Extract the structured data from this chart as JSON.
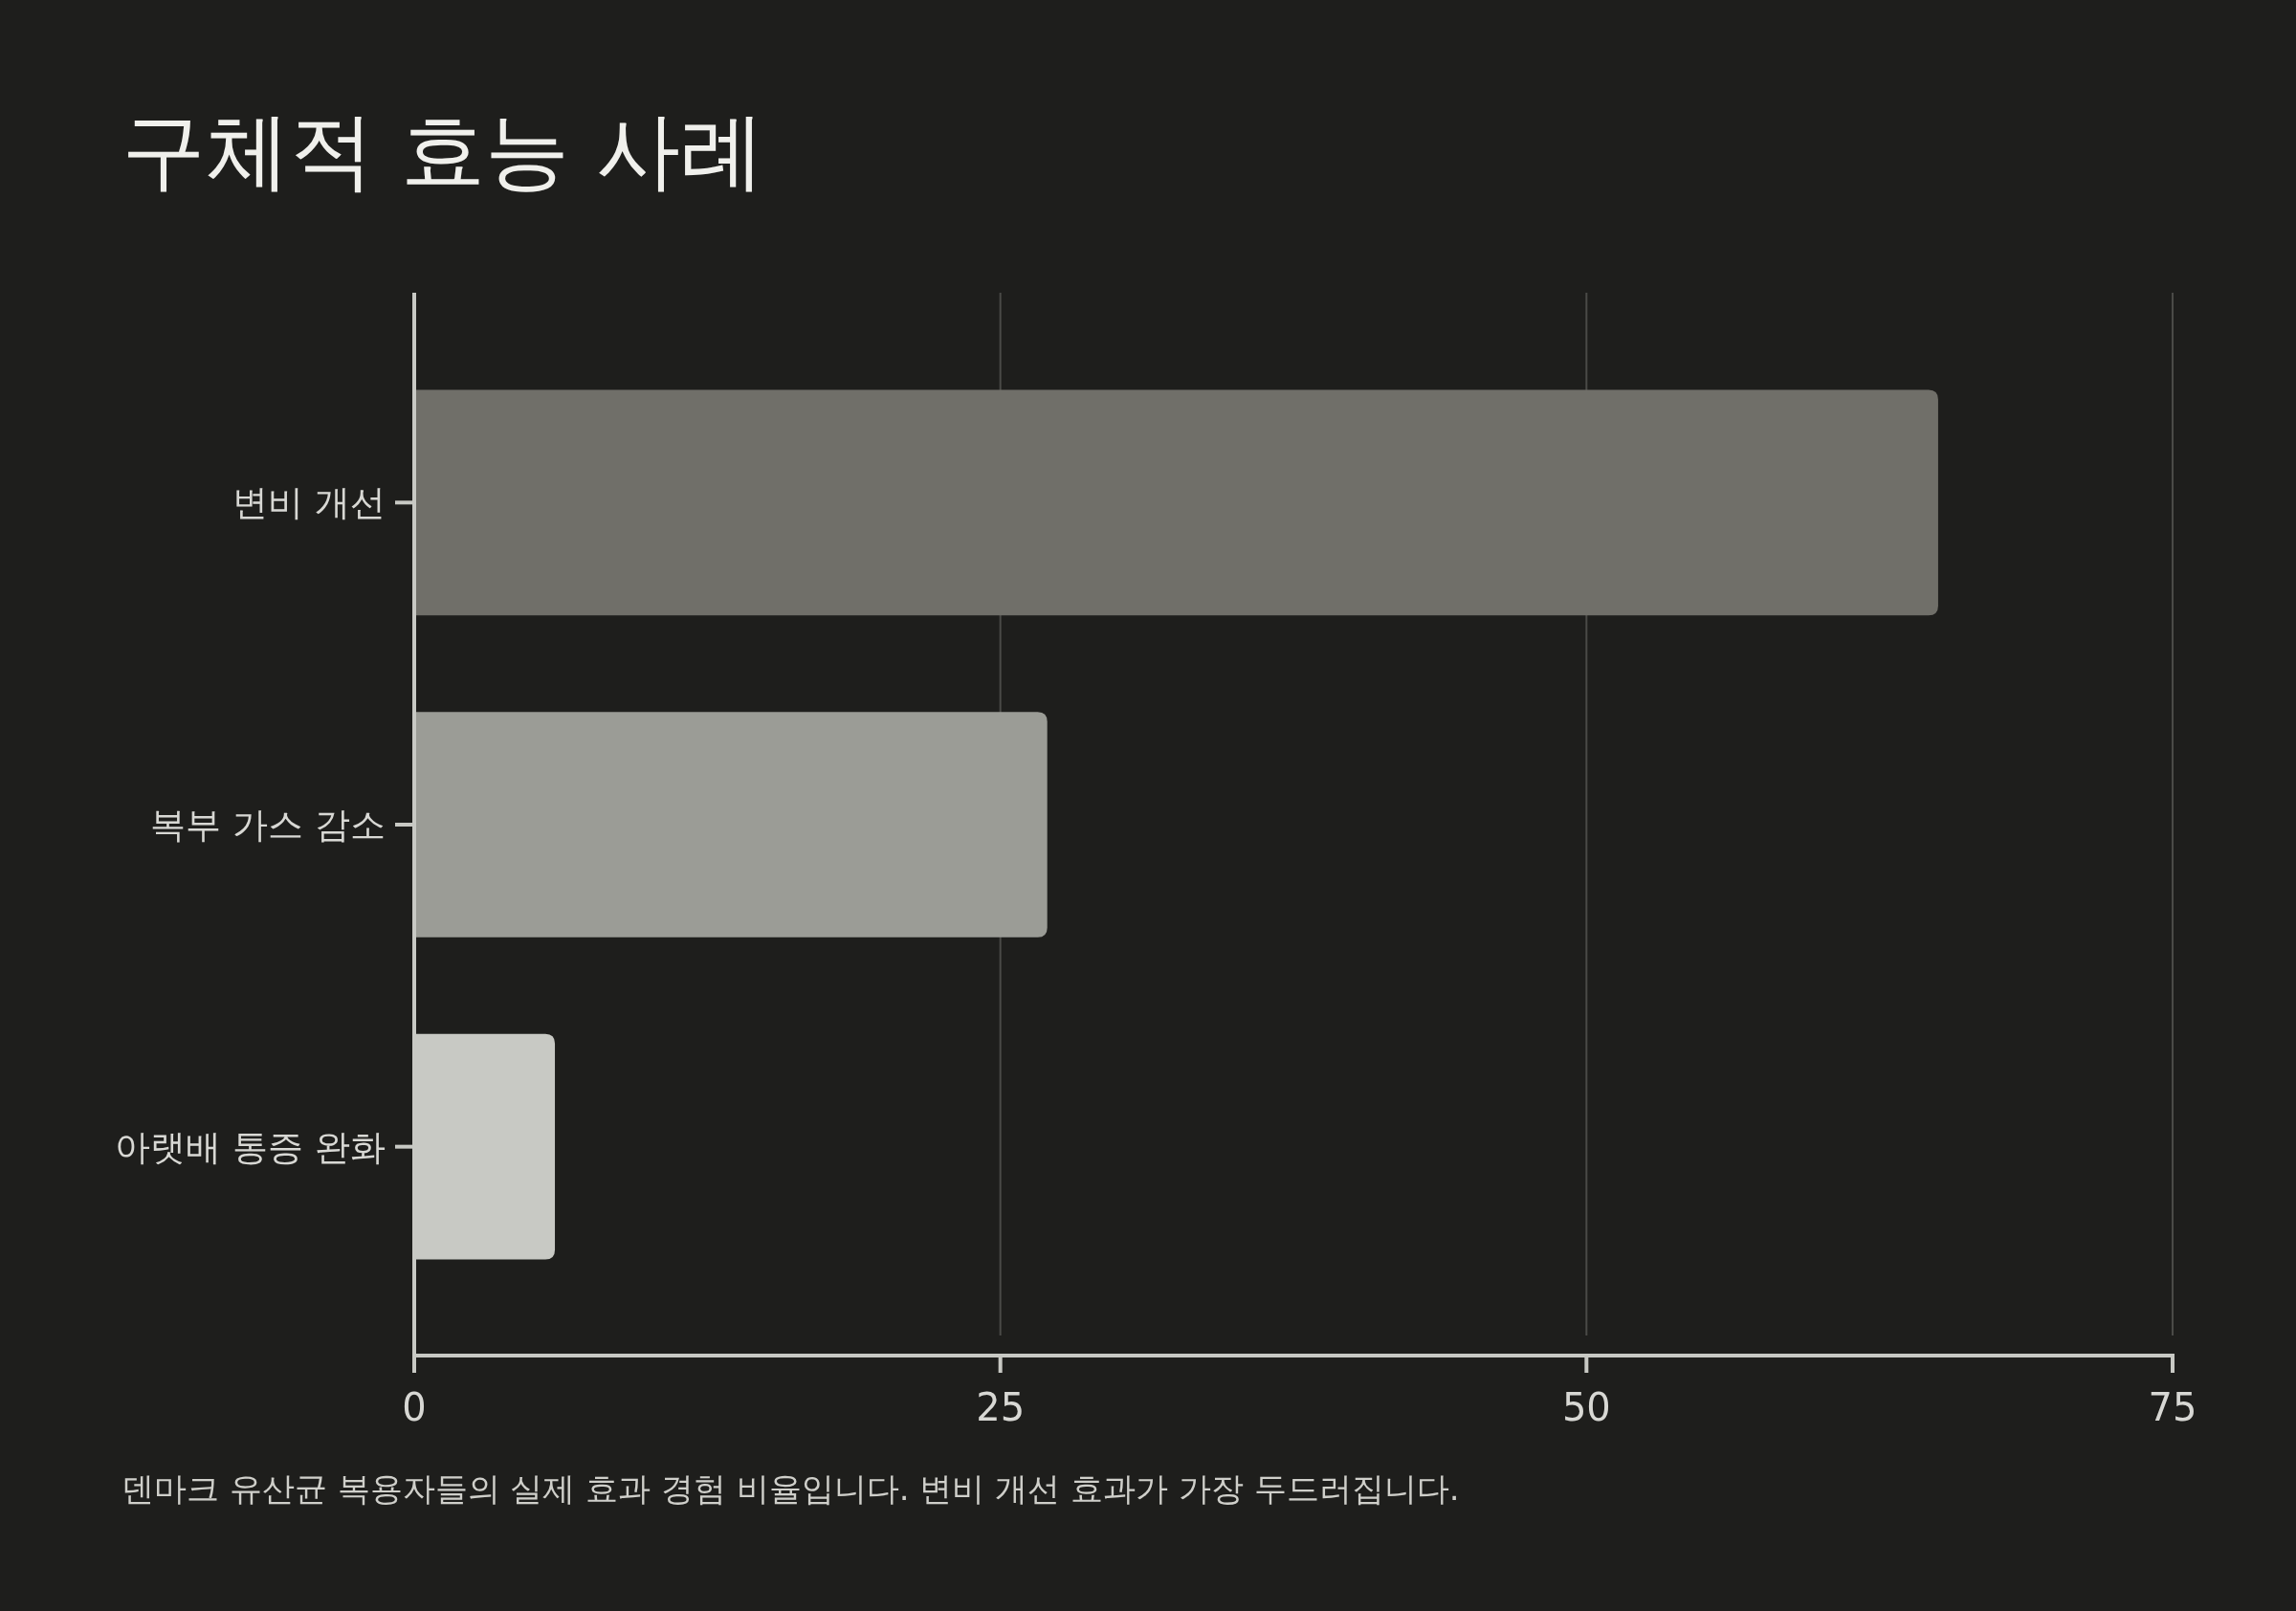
{
  "chart_data": {
    "type": "bar",
    "orientation": "horizontal",
    "title": "구체적 효능 사례",
    "categories": [
      "변비 개선",
      "복부 가스 감소",
      "아랫배 통증 완화"
    ],
    "values": [
      65,
      27,
      6
    ],
    "colors": [
      "#706f69",
      "#9b9c96",
      "#c8c9c4"
    ],
    "xlim": [
      0,
      75
    ],
    "xticks": [
      0,
      25,
      50,
      75
    ],
    "grid": "x",
    "annotations": [
      "덴마크 유산균 복용자들의 실제 효과 경험 비율입니다. 변비 개선 효과가 가장 두드러집니다."
    ]
  }
}
